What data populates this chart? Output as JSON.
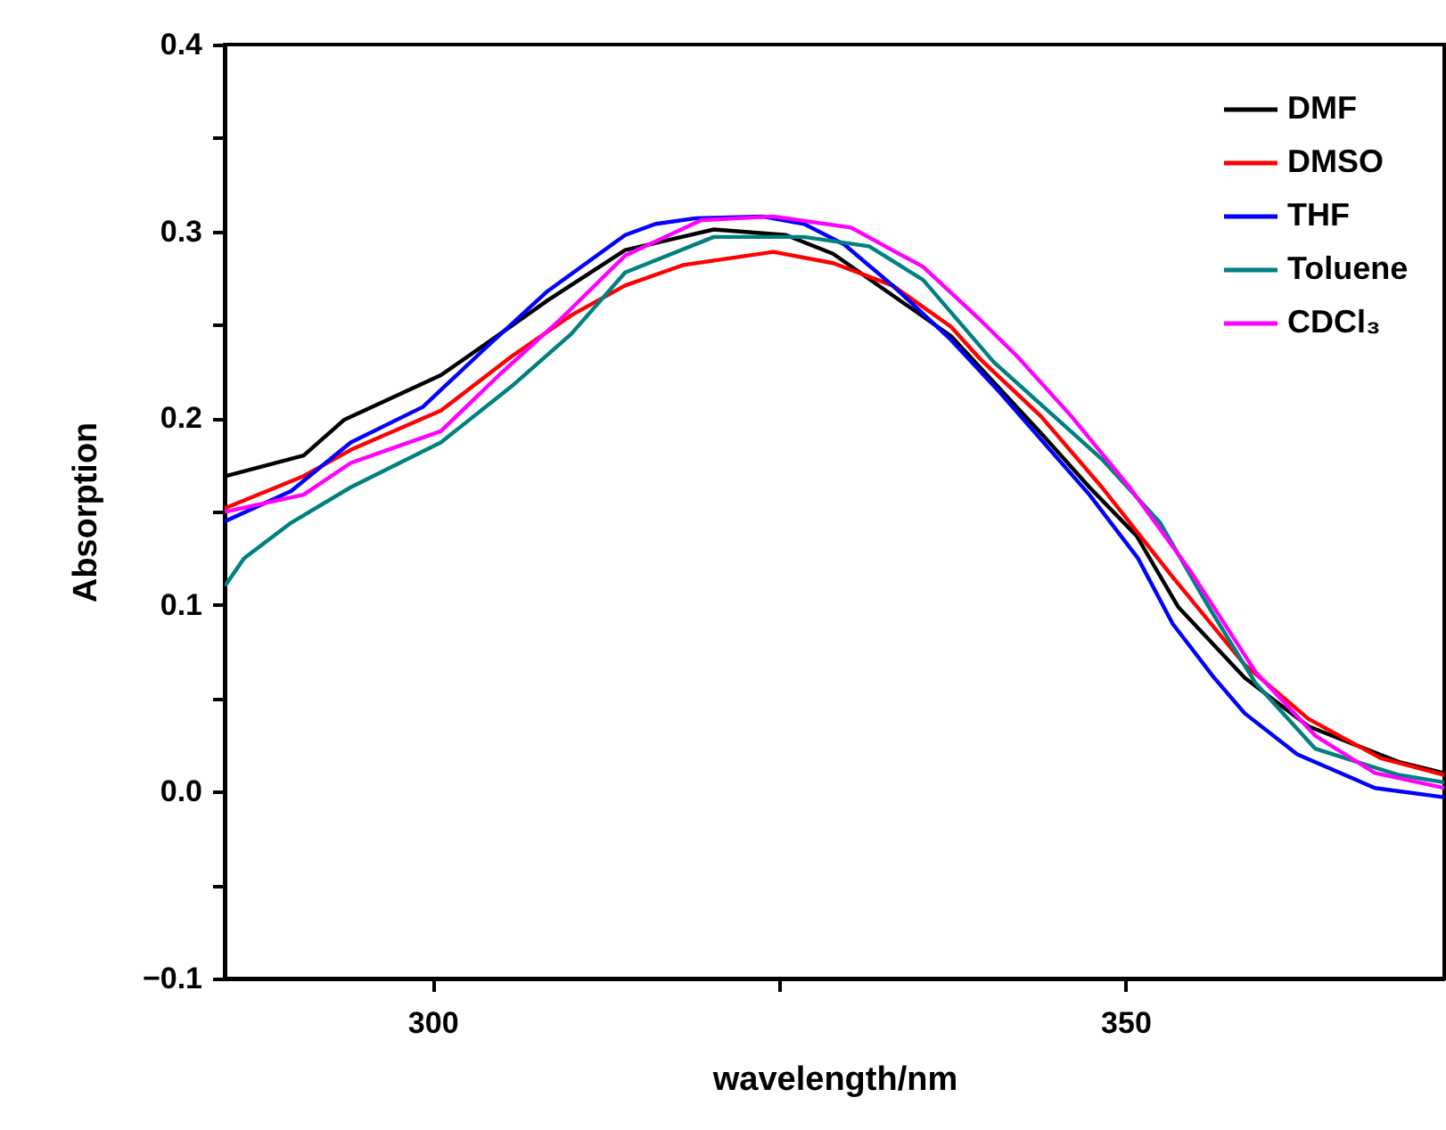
{
  "chart_data": {
    "type": "line",
    "xlabel": "wavelength/nm",
    "ylabel": "Absorption",
    "xlim": [
      285,
      373
    ],
    "xticks": [
      300,
      {
        "value": 325,
        "label": null
      },
      350
    ],
    "ylim": [
      -0.1,
      0.4
    ],
    "yticks": [
      -0.1,
      {
        "value": -0.05,
        "label": null
      },
      {
        "value": 0,
        "label": "0.0"
      },
      {
        "value": 0.05,
        "label": null
      },
      0.1,
      {
        "value": 0.15,
        "label": null
      },
      0.2,
      {
        "value": 0.25,
        "label": null
      },
      0.3,
      {
        "value": 0.35,
        "label": null
      },
      0.4
    ],
    "grid": false,
    "legend": "top right",
    "marker": "none",
    "line_style": "solid",
    "series": [
      {
        "name": "DMF",
        "color": "#000000",
        "x": [
          285.1,
          290.7,
          293.6,
          300.6,
          303.9,
          308.3,
          313.9,
          320.3,
          325.5,
          328.9,
          337.4,
          343.9,
          347.4,
          350.8,
          353.8,
          358.6,
          363.2,
          369.7,
          373
        ],
        "values": [
          0.169,
          0.18,
          0.199,
          0.223,
          0.24,
          0.263,
          0.29,
          0.301,
          0.298,
          0.288,
          0.244,
          0.192,
          0.163,
          0.137,
          0.099,
          0.061,
          0.035,
          0.016,
          0.01
        ]
      },
      {
        "name": "DMSO",
        "color": "#ff0000",
        "x": [
          285.1,
          290.7,
          294.1,
          300.6,
          305.7,
          310,
          313.9,
          318.1,
          324.6,
          328.9,
          333.2,
          337.4,
          339.6,
          343.9,
          348.3,
          353.4,
          358.6,
          363.2,
          368.4,
          373
        ],
        "values": [
          0.152,
          0.169,
          0.183,
          0.204,
          0.233,
          0.255,
          0.271,
          0.282,
          0.289,
          0.283,
          0.271,
          0.249,
          0.231,
          0.201,
          0.163,
          0.115,
          0.068,
          0.039,
          0.018,
          0.009
        ]
      },
      {
        "name": "THF",
        "color": "#0000ff",
        "x": [
          285.1,
          289.8,
          294.1,
          299.3,
          303.6,
          308.3,
          313.9,
          316.1,
          319,
          323.8,
          326.8,
          329.7,
          333.2,
          337.4,
          340.9,
          347.4,
          350.9,
          353.4,
          356.4,
          358.6,
          362.4,
          368,
          373
        ],
        "values": [
          0.145,
          0.161,
          0.187,
          0.206,
          0.236,
          0.268,
          0.298,
          0.304,
          0.307,
          0.308,
          0.304,
          0.293,
          0.271,
          0.242,
          0.214,
          0.159,
          0.125,
          0.09,
          0.061,
          0.042,
          0.02,
          0.002,
          -0.003
        ]
      },
      {
        "name": "Toluene",
        "color": "#008080",
        "x": [
          285.1,
          286.4,
          289.8,
          294.1,
          300.6,
          305.7,
          310,
          313.9,
          320.3,
          326.8,
          331.5,
          335.4,
          340.5,
          348.3,
          352.5,
          356,
          359.4,
          363.7,
          369.7,
          373
        ],
        "values": [
          0.111,
          0.125,
          0.144,
          0.163,
          0.187,
          0.217,
          0.245,
          0.278,
          0.297,
          0.297,
          0.292,
          0.274,
          0.23,
          0.178,
          0.144,
          0.099,
          0.058,
          0.023,
          0.009,
          0.005
        ]
      },
      {
        "name": "CDCl₃",
        "color": "#ff00ff",
        "x": [
          285.1,
          290.7,
          294.1,
          300.6,
          304.8,
          309.1,
          313.9,
          319.4,
          324.6,
          330.2,
          335.4,
          339.6,
          342.2,
          346.1,
          350.3,
          354.7,
          359.4,
          363.7,
          368,
          373
        ],
        "values": [
          0.15,
          0.159,
          0.176,
          0.193,
          0.223,
          0.252,
          0.287,
          0.306,
          0.308,
          0.302,
          0.281,
          0.252,
          0.233,
          0.201,
          0.163,
          0.118,
          0.064,
          0.03,
          0.01,
          0.002
        ]
      }
    ]
  }
}
